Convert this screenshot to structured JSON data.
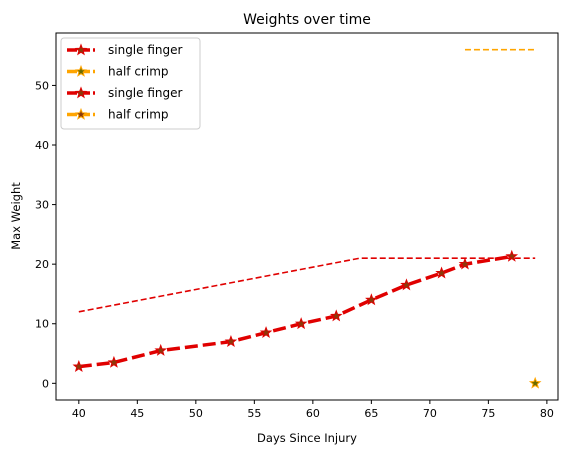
{
  "chart_data": {
    "type": "line",
    "title": "Weights over time",
    "xlabel": "Days Since Injury",
    "ylabel": "Max Weight",
    "xlim": [
      38.05,
      80.95
    ],
    "ylim": [
      -2.8,
      58.8
    ],
    "xticks": [
      40,
      45,
      50,
      55,
      60,
      65,
      70,
      75,
      80
    ],
    "yticks": [
      0,
      10,
      20,
      30,
      40,
      50
    ],
    "grid": false,
    "legend_position": "top-left",
    "series": [
      {
        "name": "single finger",
        "style": "thick-dashed-star",
        "color": "#e00000",
        "marker_fill": "#8b3a0a",
        "x": [
          40,
          43,
          47,
          53,
          56,
          59,
          62,
          65,
          68,
          71,
          73,
          77
        ],
        "y": [
          2.8,
          3.5,
          5.5,
          7.0,
          8.5,
          10.0,
          11.3,
          14.0,
          16.5,
          18.5,
          20.0,
          21.3
        ]
      },
      {
        "name": "half crimp",
        "style": "thick-dashed-star",
        "color": "#ffa500",
        "marker_fill": "#6b6b00",
        "x": [
          79
        ],
        "y": [
          0
        ]
      },
      {
        "name": "single finger",
        "style": "thin-dashed",
        "color": "#e00000",
        "x": [
          40,
          64,
          79
        ],
        "y": [
          12,
          21,
          21
        ]
      },
      {
        "name": "half crimp",
        "style": "thin-dashed",
        "color": "#ffa500",
        "x": [
          73,
          79
        ],
        "y": [
          56,
          56
        ]
      }
    ]
  }
}
